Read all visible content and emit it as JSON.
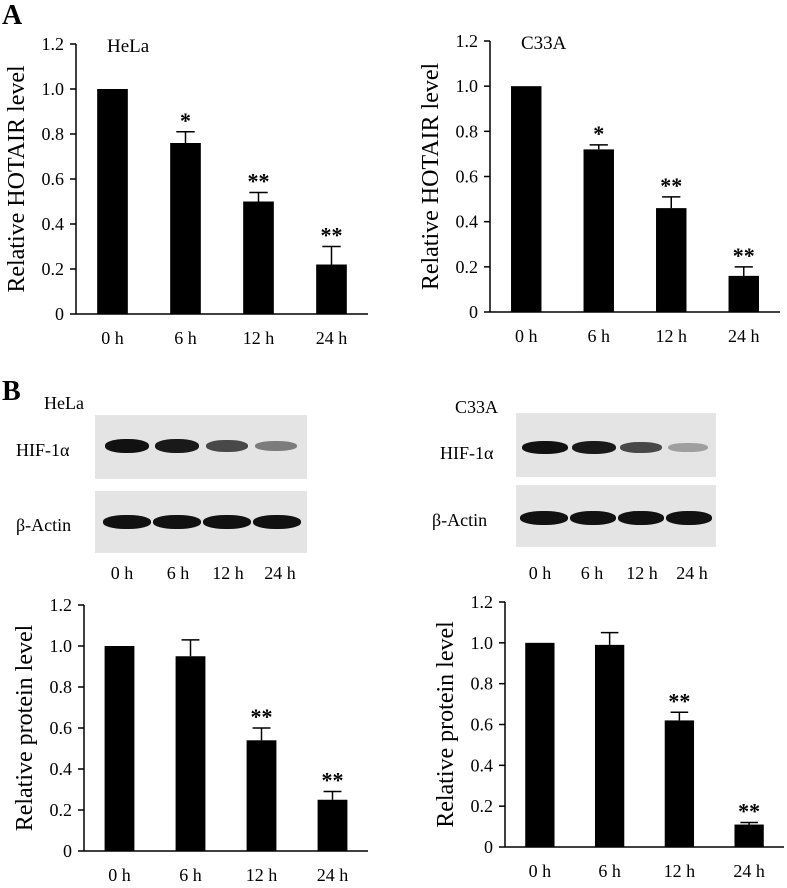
{
  "panels": {
    "a_label": "A",
    "b_label": "B"
  },
  "chart_data": [
    {
      "type": "bar",
      "title": "HeLa",
      "ylabel": "Relative HOTAIR level",
      "categories": [
        "0 h",
        "6 h",
        "12 h",
        "24 h"
      ],
      "values": [
        1.0,
        0.76,
        0.5,
        0.22
      ],
      "errors": [
        0,
        0.05,
        0.04,
        0.08
      ],
      "significance": [
        "",
        "*",
        "**",
        "**"
      ],
      "ylim": [
        0,
        1.2
      ],
      "yticks": [
        "0",
        "0.2",
        "0.4",
        "0.6",
        "0.8",
        "1.0",
        "1.2"
      ],
      "bar_color": "#000000",
      "grid": false
    },
    {
      "type": "bar",
      "title": "C33A",
      "ylabel": "Relative HOTAIR level",
      "categories": [
        "0 h",
        "6 h",
        "12 h",
        "24 h"
      ],
      "values": [
        1.0,
        0.72,
        0.46,
        0.16
      ],
      "errors": [
        0,
        0.02,
        0.05,
        0.04
      ],
      "significance": [
        "",
        "*",
        "**",
        "**"
      ],
      "ylim": [
        0,
        1.2
      ],
      "yticks": [
        "0",
        "0.2",
        "0.4",
        "0.6",
        "0.8",
        "1.0",
        "1.2"
      ],
      "bar_color": "#000000",
      "grid": false
    },
    {
      "type": "bar",
      "title": "",
      "ylabel": "Relative protein level",
      "categories": [
        "0 h",
        "6 h",
        "12 h",
        "24 h"
      ],
      "values": [
        1.0,
        0.95,
        0.54,
        0.25
      ],
      "errors": [
        0,
        0.08,
        0.06,
        0.04
      ],
      "significance": [
        "",
        "",
        "**",
        "**"
      ],
      "ylim": [
        0,
        1.2
      ],
      "yticks": [
        "0",
        "0.2",
        "0.4",
        "0.6",
        "0.8",
        "1.0",
        "1.2"
      ],
      "bar_color": "#000000",
      "grid": false
    },
    {
      "type": "bar",
      "title": "",
      "ylabel": "Relative protein level",
      "categories": [
        "0 h",
        "6 h",
        "12 h",
        "24 h"
      ],
      "values": [
        1.0,
        0.99,
        0.62,
        0.11
      ],
      "errors": [
        0,
        0.06,
        0.04,
        0.01
      ],
      "significance": [
        "",
        "",
        "**",
        "**"
      ],
      "ylim": [
        0,
        1.2
      ],
      "yticks": [
        "0",
        "0.2",
        "0.4",
        "0.6",
        "0.8",
        "1.0",
        "1.2"
      ],
      "bar_color": "#000000",
      "grid": false
    }
  ],
  "blots": [
    {
      "title": "HeLa",
      "hif_label": "HIF-1α",
      "actin_label": "β-Actin",
      "lanes": [
        "0 h",
        "6 h",
        "12 h",
        "24 h"
      ],
      "hif_intensity": [
        1.0,
        0.95,
        0.7,
        0.4
      ],
      "actin_intensity": [
        1.0,
        1.0,
        1.0,
        1.0
      ]
    },
    {
      "title": "C33A",
      "hif_label": "HIF-1α",
      "actin_label": "β-Actin",
      "lanes": [
        "0 h",
        "6 h",
        "12 h",
        "24 h"
      ],
      "hif_intensity": [
        1.0,
        0.95,
        0.7,
        0.2
      ],
      "actin_intensity": [
        1.0,
        1.0,
        1.0,
        1.0
      ]
    }
  ]
}
